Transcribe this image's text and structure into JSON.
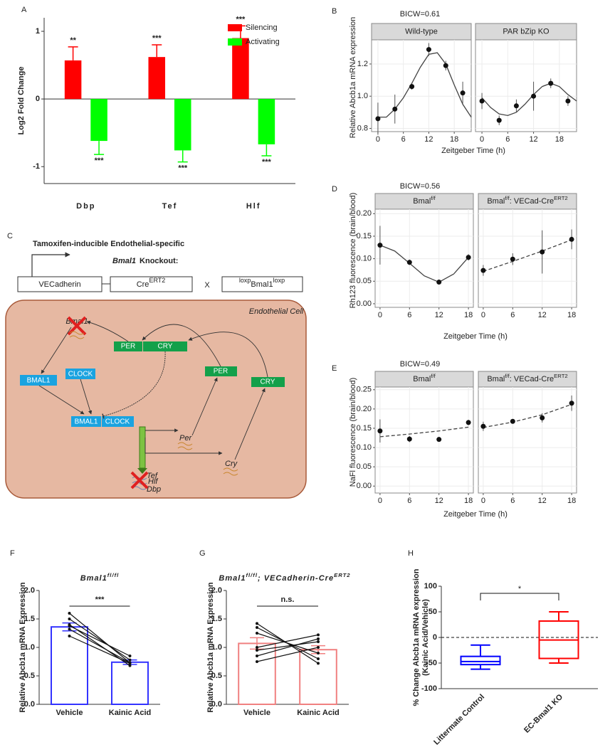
{
  "chart_data": [
    {
      "panel": "A",
      "type": "bar",
      "ylabel": "Log2 Fold Change",
      "categories": [
        "Dbp",
        "Tef",
        "Hlf"
      ],
      "series": [
        {
          "name": "Silencing",
          "color": "#ff0000",
          "values": [
            0.57,
            0.62,
            0.9
          ],
          "errors": [
            0.2,
            0.18,
            0.18
          ],
          "annotations": [
            "**",
            "***",
            "***"
          ]
        },
        {
          "name": "Activating",
          "color": "#00ff00",
          "values": [
            -0.62,
            -0.76,
            -0.67
          ],
          "errors": [
            0.2,
            0.17,
            0.17
          ],
          "annotations": [
            "***",
            "***",
            "***"
          ]
        }
      ],
      "ylim": [
        -1.25,
        1.2
      ],
      "yticks": [
        -1,
        0,
        1
      ],
      "legend": "top-right"
    },
    {
      "panel": "B",
      "type": "facet",
      "title": "BICW=0.61",
      "ylabel": "Relative Abcb1a mRNA expression",
      "xlabel": "Zeitgeber Time (h)",
      "xlim": [
        -1.5,
        22
      ],
      "xticks": [
        0,
        6,
        12,
        18
      ],
      "ylim": [
        0.78,
        1.35
      ],
      "yticks": [
        0.8,
        {
          "value": 1,
          "label": "1.0"
        },
        1.2
      ],
      "facets": [
        {
          "label": [
            {
              "text": "Wild-type"
            }
          ],
          "x": [
            0,
            4,
            8,
            12,
            16,
            20
          ],
          "values": [
            0.86,
            0.92,
            1.06,
            1.29,
            1.19,
            1.02
          ],
          "errors": [
            0.1,
            0.09,
            0.02,
            0.04,
            0.03,
            0.07
          ],
          "fit": {
            "style": "solid",
            "x": [
              0,
              2,
              4,
              6,
              8,
              10,
              12,
              14,
              16,
              18,
              20,
              22
            ],
            "values": [
              0.87,
              0.87,
              0.92,
              0.99,
              1.08,
              1.18,
              1.26,
              1.27,
              1.2,
              1.07,
              0.95,
              0.87
            ]
          }
        },
        {
          "label": [
            {
              "text": "PAR bZip KO"
            }
          ],
          "x": [
            0,
            4,
            8,
            12,
            16,
            20
          ],
          "values": [
            0.97,
            0.85,
            0.94,
            1.0,
            1.08,
            0.97
          ],
          "errors": [
            0.05,
            0.03,
            0.04,
            0.09,
            0.03,
            0.03
          ],
          "fit": {
            "style": "solid",
            "x": [
              0,
              2,
              4,
              6,
              8,
              10,
              12,
              14,
              16,
              18,
              20,
              22
            ],
            "values": [
              0.99,
              0.93,
              0.89,
              0.88,
              0.9,
              0.95,
              1.01,
              1.06,
              1.08,
              1.06,
              1.01,
              0.97
            ]
          }
        }
      ]
    },
    {
      "panel": "D",
      "type": "facet",
      "title": "BICW=0.56",
      "ylabel": "Rh123 fluorescence (brain/blood)",
      "xlabel": "Zeitgeber Time (h)",
      "xlim": [
        -1,
        19
      ],
      "xticks": [
        0,
        6,
        12,
        18
      ],
      "ylim": [
        -0.008,
        0.21
      ],
      "yticks": [
        {
          "value": 0,
          "label": "0.00"
        },
        0.05,
        {
          "value": 0.1,
          "label": "0.10"
        },
        0.15,
        {
          "value": 0.2,
          "label": "0.20"
        }
      ],
      "facets": [
        {
          "label": [
            {
              "text": "Bmal"
            },
            {
              "text": "f/f",
              "sup": true
            }
          ],
          "x": [
            0,
            6,
            12,
            18
          ],
          "values": [
            0.13,
            0.092,
            0.048,
            0.103
          ],
          "errors": [
            0.043,
            0.006,
            0.003,
            0.007
          ],
          "fit": {
            "style": "solid",
            "x": [
              0,
              3,
              6,
              9,
              12,
              15,
              18
            ],
            "values": [
              0.13,
              0.117,
              0.09,
              0.062,
              0.048,
              0.066,
              0.103
            ]
          }
        },
        {
          "label": [
            {
              "text": "Bmal"
            },
            {
              "text": "f/f",
              "sup": true
            },
            {
              "text": ": VECad-Cre"
            },
            {
              "text": "ERT2",
              "sup": true
            }
          ],
          "x": [
            0,
            6,
            12,
            18
          ],
          "values": [
            0.074,
            0.099,
            0.115,
            0.143
          ],
          "errors": [
            0.012,
            0.013,
            0.048,
            0.022
          ],
          "fit": {
            "style": "dashed",
            "x": [
              0,
              6,
              12,
              18
            ],
            "values": [
              0.072,
              0.094,
              0.117,
              0.142
            ]
          }
        }
      ]
    },
    {
      "panel": "E",
      "type": "facet",
      "title": "BICW=0.49",
      "ylabel": "NaFl fluorescence (brain/blood)",
      "xlabel": "Zeitgeber Time (h)",
      "xlim": [
        -1,
        19
      ],
      "xticks": [
        0,
        6,
        12,
        18
      ],
      "ylim": [
        -0.018,
        0.257
      ],
      "yticks": [
        {
          "value": 0,
          "label": "0.00"
        },
        0.05,
        {
          "value": 0.1,
          "label": "0.10"
        },
        0.15,
        {
          "value": 0.2,
          "label": "0.20"
        },
        0.25
      ],
      "facets": [
        {
          "label": [
            {
              "text": "Bmal"
            },
            {
              "text": "f/f",
              "sup": true
            }
          ],
          "x": [
            0,
            6,
            12,
            18
          ],
          "values": [
            0.143,
            0.122,
            0.121,
            0.165
          ],
          "errors": [
            0.03,
            0.008,
            0.004,
            0.007
          ],
          "fit": {
            "style": "dashed",
            "x": [
              0,
              6,
              12,
              18
            ],
            "values": [
              0.128,
              0.135,
              0.143,
              0.153
            ]
          }
        },
        {
          "label": [
            {
              "text": "Bmal"
            },
            {
              "text": "f/f",
              "sup": true
            },
            {
              "text": ": VECad-Cre"
            },
            {
              "text": "ERT2",
              "sup": true
            }
          ],
          "x": [
            0,
            6,
            12,
            18
          ],
          "values": [
            0.155,
            0.168,
            0.177,
            0.215
          ],
          "errors": [
            0.012,
            0.004,
            0.012,
            0.02
          ],
          "fit": {
            "style": "dashed",
            "x": [
              0,
              6,
              12,
              18
            ],
            "values": [
              0.152,
              0.166,
              0.185,
              0.212
            ]
          }
        }
      ]
    },
    {
      "panel": "F",
      "type": "paired-bar",
      "title": [
        {
          "text": "Bmal1"
        },
        {
          "text": "fl/fl",
          "sup": true
        }
      ],
      "ylabel": "Relative Abcb1a mRNA Expression",
      "categories": [
        "Vehicle",
        "Kainic Acid"
      ],
      "values": [
        1.36,
        0.74
      ],
      "errors": [
        0.07,
        0.04
      ],
      "color": "#3333ff",
      "pairs": [
        [
          1.6,
          0.73
        ],
        [
          1.5,
          0.78
        ],
        [
          1.4,
          0.68
        ],
        [
          1.38,
          0.85
        ],
        [
          1.32,
          0.73
        ],
        [
          1.2,
          0.72
        ]
      ],
      "significance": "***",
      "ylim": [
        0,
        2
      ],
      "yticks": [
        {
          "value": 0,
          "label": "0.0"
        },
        0.5,
        {
          "value": 1,
          "label": "1.0"
        },
        1.5,
        {
          "value": 2,
          "label": "2.0"
        }
      ]
    },
    {
      "panel": "G",
      "type": "paired-bar",
      "title": [
        {
          "text": "Bmal1"
        },
        {
          "text": "fl/fl",
          "sup": true
        },
        {
          "text": "; VECadherin-Cre"
        },
        {
          "text": "ERT2",
          "sup": true
        }
      ],
      "ylabel": "Relative Abcb1a mRNA Expression",
      "categories": [
        "Vehicle",
        "Kainic Acid"
      ],
      "values": [
        1.07,
        0.96
      ],
      "errors": [
        0.1,
        0.07
      ],
      "color": "#f08080",
      "pairs": [
        [
          1.42,
          0.72
        ],
        [
          1.35,
          0.8
        ],
        [
          1.25,
          0.9
        ],
        [
          1.0,
          1.22
        ],
        [
          0.95,
          1.1
        ],
        [
          0.85,
          1.15
        ],
        [
          0.75,
          1.0
        ]
      ],
      "significance": "n.s.",
      "ylim": [
        0,
        2
      ],
      "yticks": [
        {
          "value": 0,
          "label": "0.0"
        },
        0.5,
        {
          "value": 1,
          "label": "1.0"
        },
        1.5,
        {
          "value": 2,
          "label": "2.0"
        }
      ]
    },
    {
      "panel": "H",
      "type": "box",
      "ylabel": [
        "% Change Abcb1a mRNA expression",
        "(Kainic Acid/Vehicle)"
      ],
      "categories": [
        "Littermate Control",
        "EC-Bmal1 KO"
      ],
      "colors": [
        "#0000ff",
        "#ff0000"
      ],
      "boxes": [
        {
          "min": -62,
          "q1": -53,
          "median": -47,
          "q3": -37,
          "max": -15
        },
        {
          "min": -50,
          "q1": -41,
          "median": -5,
          "q3": 32,
          "max": 50
        }
      ],
      "reference_line": 0,
      "significance": "*",
      "ylim": [
        -100,
        100
      ],
      "yticks": [
        -100,
        -50,
        0,
        50,
        100
      ]
    }
  ],
  "diagram": {
    "panel": "C",
    "title": "Tamoxifen-inducible Endothelial-specific",
    "subtitle_gene": "Bmal1",
    "subtitle_rest": "Knockout:",
    "promoter": "VECadherin",
    "cre": "Cre",
    "cre_sup": "ERT2",
    "cross": "X",
    "flox_pre": "loxp",
    "flox": "Bmal1",
    "flox_post": "loxp",
    "cell": "Endothelial Cell",
    "nodes": [
      "Bmal1",
      "PER",
      "CRY",
      "BMAL1",
      "CLOCK",
      "PER",
      "CRY",
      "BMAL1",
      "CLOCK",
      "Per",
      "Cry",
      "Tef",
      "Hlf",
      "Dbp"
    ]
  }
}
